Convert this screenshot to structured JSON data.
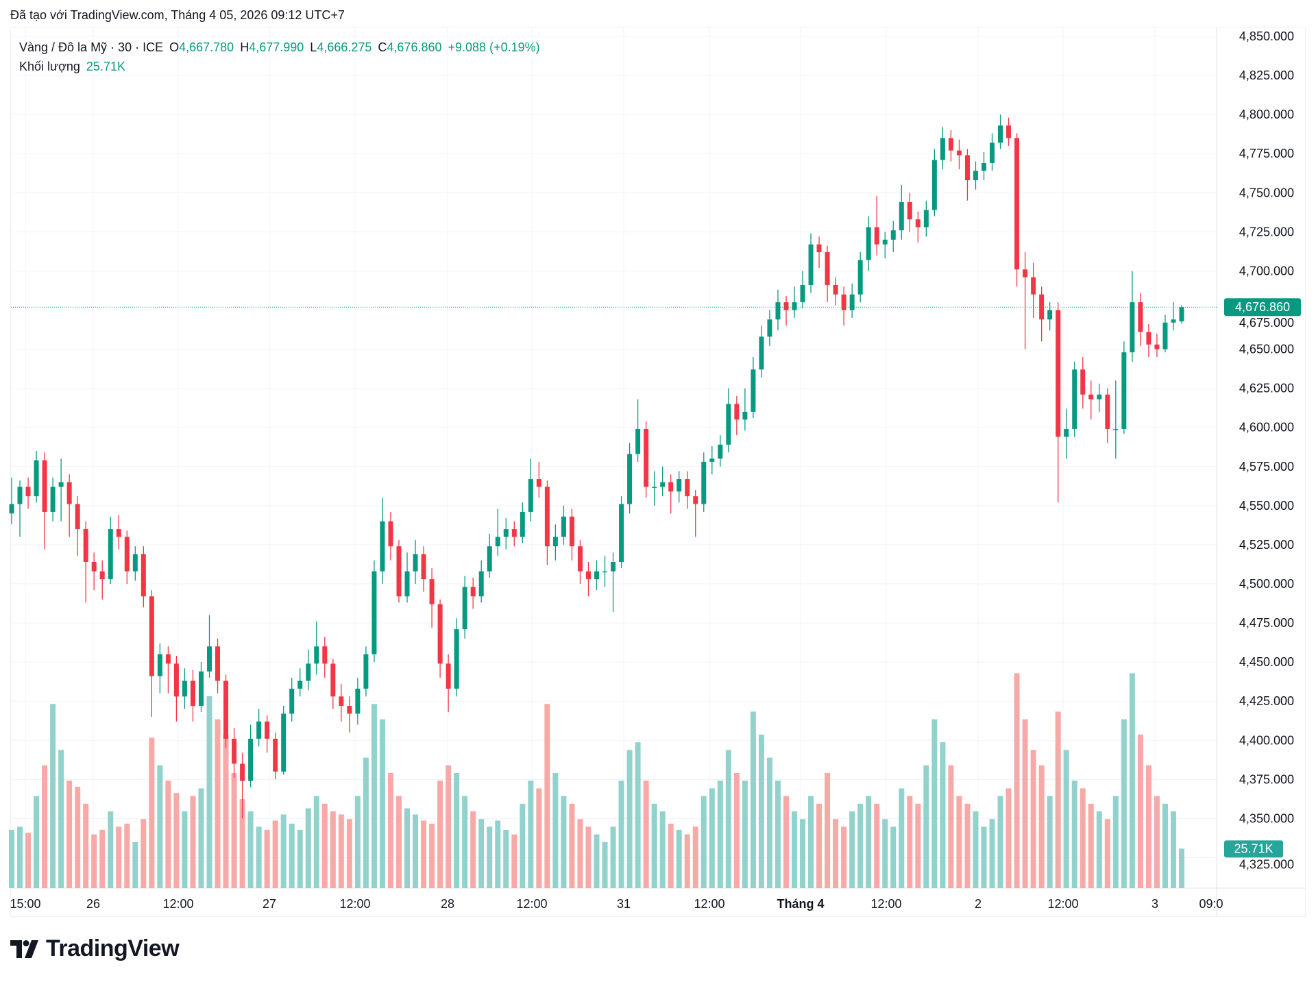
{
  "created_line": "Đã tạo với TradingView.com, Tháng 4 05, 2026 09:12 UTC+7",
  "legend": {
    "symbol": "Vàng / Đô la Mỹ · 30 · ICE",
    "o_label": "O",
    "o": "4,667.780",
    "h_label": "H",
    "h": "4,677.990",
    "l_label": "L",
    "l": "4,666.275",
    "c_label": "C",
    "c": "4,676.860",
    "change": "+9.088 (+0.19%)",
    "volume_label": "Khối lượng",
    "volume": "25.71K"
  },
  "logo_text": "TradingView",
  "colors": {
    "up": "#089981",
    "down": "#f23645",
    "up_volume": "#92d2cc",
    "down_volume": "#f7a9a7",
    "grid": "#f0f3fa"
  },
  "chart_data": {
    "type": "candlestick",
    "title": "",
    "ylim": [
      4300,
      4862.5
    ],
    "y_ticks": [
      "4,850.000",
      "4,825.000",
      "4,800.000",
      "4,775.000",
      "4,750.000",
      "4,725.000",
      "4,700.000",
      "4,675.000",
      "4,650.000",
      "4,625.000",
      "4,600.000",
      "4,575.000",
      "4,550.000",
      "4,525.000",
      "4,500.000",
      "4,475.000",
      "4,450.000",
      "4,425.000",
      "4,400.000",
      "4,375.000",
      "4,350.000",
      "4,325.000"
    ],
    "x_ticks": [
      "15:00",
      "26",
      "12:00",
      "27",
      "12:00",
      "28",
      "12:00",
      "31",
      "12:00",
      "Tháng 4",
      "12:00",
      "2",
      "12:00",
      "3",
      "09:0"
    ],
    "bold_x_tick": "Tháng 4",
    "last_price_label": "4,676.860",
    "last_price": 4676.86,
    "last_volume_label": "25.71K",
    "candle_fields": [
      "open",
      "high",
      "low",
      "close",
      "volume_k"
    ],
    "candles": [
      [
        4545,
        4568,
        4538,
        4551,
        38
      ],
      [
        4551,
        4566,
        4530,
        4562,
        40
      ],
      [
        4562,
        4568,
        4548,
        4556,
        36
      ],
      [
        4556,
        4585,
        4552,
        4579,
        60
      ],
      [
        4579,
        4584,
        4522,
        4546,
        80
      ],
      [
        4546,
        4568,
        4540,
        4562,
        120
      ],
      [
        4562,
        4580,
        4540,
        4565,
        90
      ],
      [
        4565,
        4570,
        4530,
        4551,
        70
      ],
      [
        4551,
        4556,
        4518,
        4535,
        66
      ],
      [
        4535,
        4540,
        4488,
        4514,
        55
      ],
      [
        4514,
        4520,
        4496,
        4508,
        35
      ],
      [
        4508,
        4515,
        4490,
        4503,
        38
      ],
      [
        4503,
        4543,
        4500,
        4535,
        50
      ],
      [
        4535,
        4544,
        4522,
        4530,
        40
      ],
      [
        4530,
        4534,
        4500,
        4508,
        42
      ],
      [
        4508,
        4524,
        4502,
        4519,
        30
      ],
      [
        4519,
        4524,
        4485,
        4492,
        45
      ],
      [
        4492,
        4496,
        4415,
        4441,
        98
      ],
      [
        4441,
        4462,
        4430,
        4455,
        80
      ],
      [
        4455,
        4460,
        4430,
        4449,
        70
      ],
      [
        4449,
        4454,
        4412,
        4428,
        62
      ],
      [
        4428,
        4446,
        4420,
        4438,
        50
      ],
      [
        4438,
        4445,
        4412,
        4422,
        60
      ],
      [
        4422,
        4450,
        4418,
        4444,
        65
      ],
      [
        4444,
        4480,
        4440,
        4460,
        125
      ],
      [
        4460,
        4465,
        4430,
        4438,
        110
      ],
      [
        4438,
        4442,
        4395,
        4401,
        100
      ],
      [
        4401,
        4408,
        4376,
        4385,
        75
      ],
      [
        4385,
        4392,
        4350,
        4374,
        58
      ],
      [
        4374,
        4410,
        4370,
        4401,
        50
      ],
      [
        4401,
        4420,
        4396,
        4412,
        40
      ],
      [
        4412,
        4416,
        4392,
        4401,
        38
      ],
      [
        4401,
        4405,
        4375,
        4380,
        44
      ],
      [
        4380,
        4422,
        4378,
        4417,
        48
      ],
      [
        4417,
        4440,
        4412,
        4433,
        42
      ],
      [
        4433,
        4446,
        4428,
        4438,
        38
      ],
      [
        4438,
        4458,
        4432,
        4449,
        52
      ],
      [
        4449,
        4476,
        4442,
        4460,
        60
      ],
      [
        4460,
        4466,
        4440,
        4449,
        55
      ],
      [
        4449,
        4452,
        4420,
        4428,
        50
      ],
      [
        4428,
        4436,
        4412,
        4422,
        48
      ],
      [
        4422,
        4428,
        4405,
        4417,
        45
      ],
      [
        4417,
        4440,
        4410,
        4433,
        60
      ],
      [
        4433,
        4460,
        4428,
        4455,
        85
      ],
      [
        4455,
        4515,
        4450,
        4508,
        120
      ],
      [
        4508,
        4555,
        4500,
        4540,
        110
      ],
      [
        4540,
        4546,
        4515,
        4524,
        75
      ],
      [
        4524,
        4528,
        4488,
        4492,
        60
      ],
      [
        4492,
        4520,
        4488,
        4508,
        52
      ],
      [
        4508,
        4528,
        4500,
        4519,
        48
      ],
      [
        4519,
        4524,
        4495,
        4503,
        44
      ],
      [
        4503,
        4510,
        4472,
        4487,
        42
      ],
      [
        4487,
        4490,
        4440,
        4449,
        70
      ],
      [
        4449,
        4455,
        4418,
        4433,
        80
      ],
      [
        4433,
        4478,
        4428,
        4471,
        75
      ],
      [
        4471,
        4505,
        4465,
        4498,
        60
      ],
      [
        4498,
        4504,
        4484,
        4492,
        50
      ],
      [
        4492,
        4515,
        4488,
        4508,
        45
      ],
      [
        4508,
        4532,
        4504,
        4524,
        40
      ],
      [
        4524,
        4548,
        4518,
        4530,
        44
      ],
      [
        4530,
        4542,
        4522,
        4535,
        38
      ],
      [
        4535,
        4540,
        4524,
        4530,
        35
      ],
      [
        4530,
        4552,
        4526,
        4546,
        55
      ],
      [
        4546,
        4580,
        4540,
        4567,
        70
      ],
      [
        4567,
        4578,
        4555,
        4562,
        65
      ],
      [
        4562,
        4566,
        4512,
        4524,
        120
      ],
      [
        4524,
        4538,
        4515,
        4530,
        75
      ],
      [
        4530,
        4550,
        4525,
        4543,
        60
      ],
      [
        4543,
        4548,
        4515,
        4524,
        55
      ],
      [
        4524,
        4528,
        4500,
        4508,
        45
      ],
      [
        4508,
        4514,
        4492,
        4503,
        40
      ],
      [
        4503,
        4515,
        4496,
        4508,
        35
      ],
      [
        4508,
        4518,
        4498,
        4508,
        30
      ],
      [
        4508,
        4520,
        4482,
        4514,
        40
      ],
      [
        4514,
        4556,
        4510,
        4551,
        70
      ],
      [
        4551,
        4590,
        4545,
        4583,
        90
      ],
      [
        4583,
        4618,
        4578,
        4599,
        95
      ],
      [
        4599,
        4604,
        4555,
        4562,
        70
      ],
      [
        4562,
        4572,
        4550,
        4562,
        55
      ],
      [
        4562,
        4575,
        4556,
        4565,
        50
      ],
      [
        4565,
        4570,
        4545,
        4559,
        42
      ],
      [
        4559,
        4572,
        4552,
        4567,
        38
      ],
      [
        4567,
        4572,
        4548,
        4556,
        35
      ],
      [
        4556,
        4560,
        4530,
        4551,
        40
      ],
      [
        4551,
        4584,
        4546,
        4578,
        60
      ],
      [
        4578,
        4588,
        4570,
        4580,
        65
      ],
      [
        4580,
        4595,
        4575,
        4589,
        70
      ],
      [
        4589,
        4625,
        4584,
        4615,
        90
      ],
      [
        4615,
        4620,
        4595,
        4605,
        75
      ],
      [
        4605,
        4625,
        4598,
        4610,
        70
      ],
      [
        4610,
        4645,
        4606,
        4637,
        115
      ],
      [
        4637,
        4665,
        4632,
        4658,
        100
      ],
      [
        4658,
        4675,
        4652,
        4669,
        85
      ],
      [
        4669,
        4688,
        4662,
        4680,
        70
      ],
      [
        4680,
        4684,
        4665,
        4675,
        60
      ],
      [
        4675,
        4690,
        4670,
        4680,
        50
      ],
      [
        4680,
        4700,
        4676,
        4691,
        45
      ],
      [
        4691,
        4724,
        4686,
        4717,
        60
      ],
      [
        4717,
        4722,
        4702,
        4712,
        55
      ],
      [
        4712,
        4716,
        4680,
        4691,
        75
      ],
      [
        4691,
        4696,
        4678,
        4685,
        45
      ],
      [
        4685,
        4690,
        4665,
        4675,
        40
      ],
      [
        4675,
        4692,
        4670,
        4685,
        50
      ],
      [
        4685,
        4712,
        4680,
        4707,
        55
      ],
      [
        4707,
        4735,
        4700,
        4728,
        60
      ],
      [
        4728,
        4748,
        4710,
        4717,
        55
      ],
      [
        4717,
        4725,
        4708,
        4720,
        45
      ],
      [
        4720,
        4732,
        4712,
        4726,
        40
      ],
      [
        4726,
        4755,
        4720,
        4744,
        65
      ],
      [
        4744,
        4750,
        4725,
        4733,
        60
      ],
      [
        4733,
        4738,
        4718,
        4728,
        55
      ],
      [
        4728,
        4745,
        4722,
        4739,
        80
      ],
      [
        4739,
        4778,
        4735,
        4771,
        110
      ],
      [
        4771,
        4792,
        4765,
        4785,
        95
      ],
      [
        4785,
        4790,
        4770,
        4777,
        80
      ],
      [
        4777,
        4784,
        4765,
        4774,
        60
      ],
      [
        4774,
        4778,
        4745,
        4758,
        55
      ],
      [
        4758,
        4770,
        4752,
        4764,
        50
      ],
      [
        4764,
        4776,
        4758,
        4769,
        40
      ],
      [
        4769,
        4788,
        4764,
        4782,
        45
      ],
      [
        4782,
        4800,
        4778,
        4793,
        60
      ],
      [
        4793,
        4798,
        4780,
        4785,
        65
      ],
      [
        4785,
        4788,
        4690,
        4701,
        140
      ],
      [
        4701,
        4712,
        4650,
        4696,
        110
      ],
      [
        4696,
        4705,
        4670,
        4685,
        90
      ],
      [
        4685,
        4690,
        4655,
        4669,
        80
      ],
      [
        4669,
        4680,
        4662,
        4675,
        60
      ],
      [
        4675,
        4680,
        4552,
        4594,
        115
      ],
      [
        4594,
        4612,
        4580,
        4599,
        90
      ],
      [
        4599,
        4642,
        4594,
        4637,
        70
      ],
      [
        4637,
        4645,
        4612,
        4621,
        65
      ],
      [
        4621,
        4630,
        4605,
        4618,
        55
      ],
      [
        4618,
        4628,
        4610,
        4621,
        50
      ],
      [
        4621,
        4625,
        4590,
        4599,
        45
      ],
      [
        4599,
        4630,
        4580,
        4599,
        60
      ],
      [
        4599,
        4655,
        4596,
        4648,
        110
      ],
      [
        4648,
        4700,
        4642,
        4680,
        140
      ],
      [
        4680,
        4686,
        4652,
        4661,
        100
      ],
      [
        4661,
        4666,
        4645,
        4653,
        80
      ],
      [
        4653,
        4660,
        4645,
        4650,
        60
      ],
      [
        4650,
        4672,
        4648,
        4667,
        55
      ],
      [
        4667,
        4680,
        4662,
        4669,
        50
      ],
      [
        4667.78,
        4677.99,
        4666.275,
        4676.86,
        25.71
      ]
    ]
  }
}
